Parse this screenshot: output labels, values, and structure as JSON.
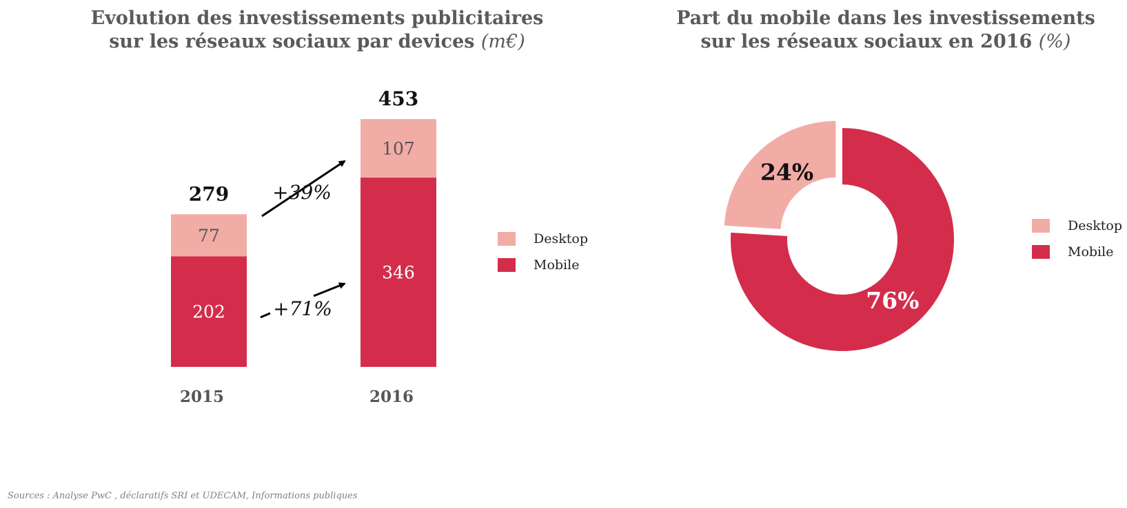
{
  "colors": {
    "desktop": "#f2aca6",
    "mobile": "#d42d4c",
    "text_dark": "#111111",
    "title": "#5a5a5a",
    "arrow": "#000000"
  },
  "left_title": {
    "line1": "Evolution des investissements publicitaires",
    "line2": "sur les réseaux sociaux par devices",
    "unit": "(m€)"
  },
  "right_title": {
    "line1": "Part du mobile dans les investissements",
    "line2": "sur les réseaux sociaux en 2016",
    "unit": "(%)"
  },
  "legend": {
    "desktop": "Desktop",
    "mobile": "Mobile"
  },
  "growth": {
    "desktop": "+39%",
    "mobile": "+71%"
  },
  "source": "Sources : Analyse PwC , déclaratifs SRI et UDECAM, Informations publiques",
  "chart_data": [
    {
      "type": "bar",
      "stacked": true,
      "categories": [
        "2015",
        "2016"
      ],
      "series": [
        {
          "name": "Mobile",
          "values": [
            202,
            346
          ]
        },
        {
          "name": "Desktop",
          "values": [
            77,
            107
          ]
        }
      ],
      "totals": [
        279,
        453
      ],
      "title": "Evolution des investissements publicitaires sur les réseaux sociaux par devices (m€)",
      "ylim": [
        0,
        453
      ],
      "grid": false,
      "legend": "right"
    },
    {
      "type": "pie",
      "donut": true,
      "labels": [
        "Desktop",
        "Mobile"
      ],
      "values": [
        24,
        76
      ],
      "value_labels": [
        "24%",
        "76%"
      ],
      "title": "Part du mobile dans les investissements sur les réseaux sociaux en 2016 (%)",
      "legend": "right"
    }
  ]
}
